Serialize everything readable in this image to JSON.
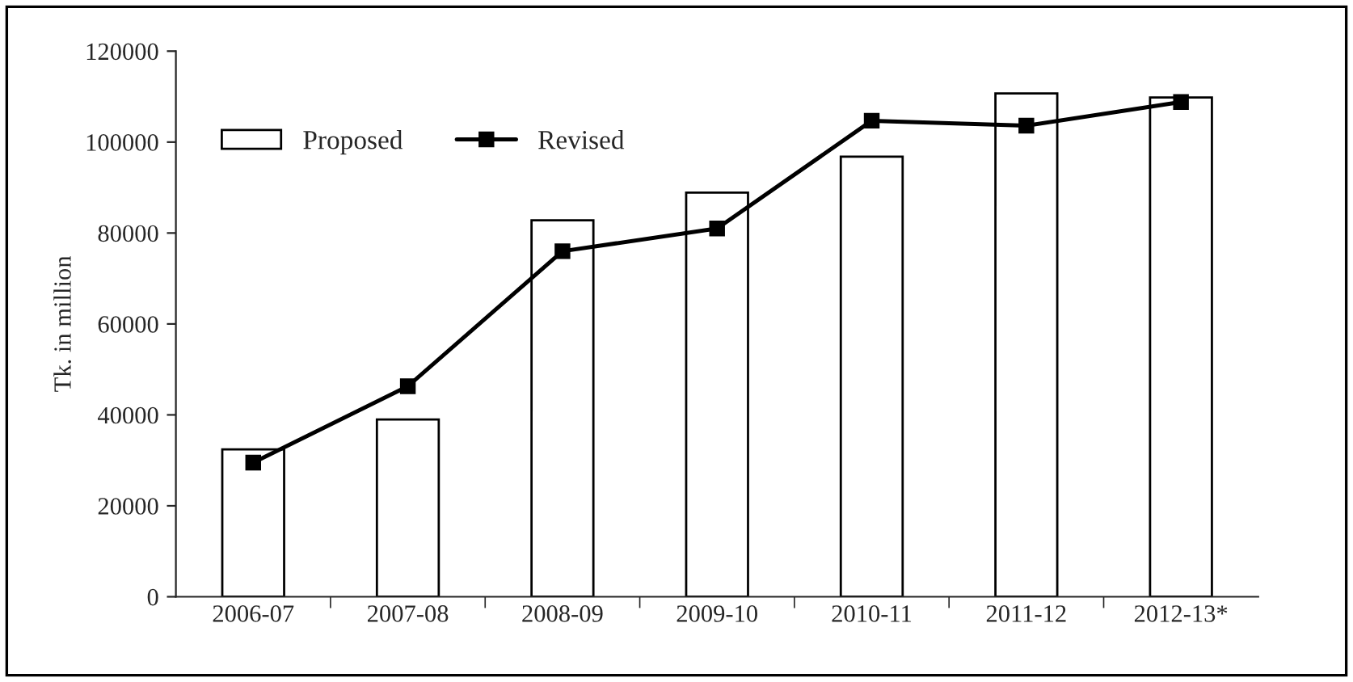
{
  "chart_data": {
    "type": "bar",
    "ylabel": "Tk. in million",
    "categories": [
      "2006-07",
      "2007-08",
      "2008-09",
      "2009-10",
      "2010-11",
      "2011-12",
      "2012-13*"
    ],
    "series": [
      {
        "name": "Proposed",
        "color": "#ffffff",
        "values": [
          32400,
          39000,
          82800,
          88900,
          96800,
          110700,
          109800
        ]
      },
      {
        "name": "Revised",
        "type": "line",
        "color": "#000000",
        "values": [
          29500,
          46300,
          76000,
          81000,
          104700,
          103600,
          108800
        ]
      }
    ],
    "ylim": [
      0,
      120000
    ],
    "yticks": [
      0,
      20000,
      40000,
      60000,
      80000,
      100000,
      120000
    ],
    "grid": false,
    "legend": "top left",
    "marker": "square",
    "line_style": "solid"
  }
}
